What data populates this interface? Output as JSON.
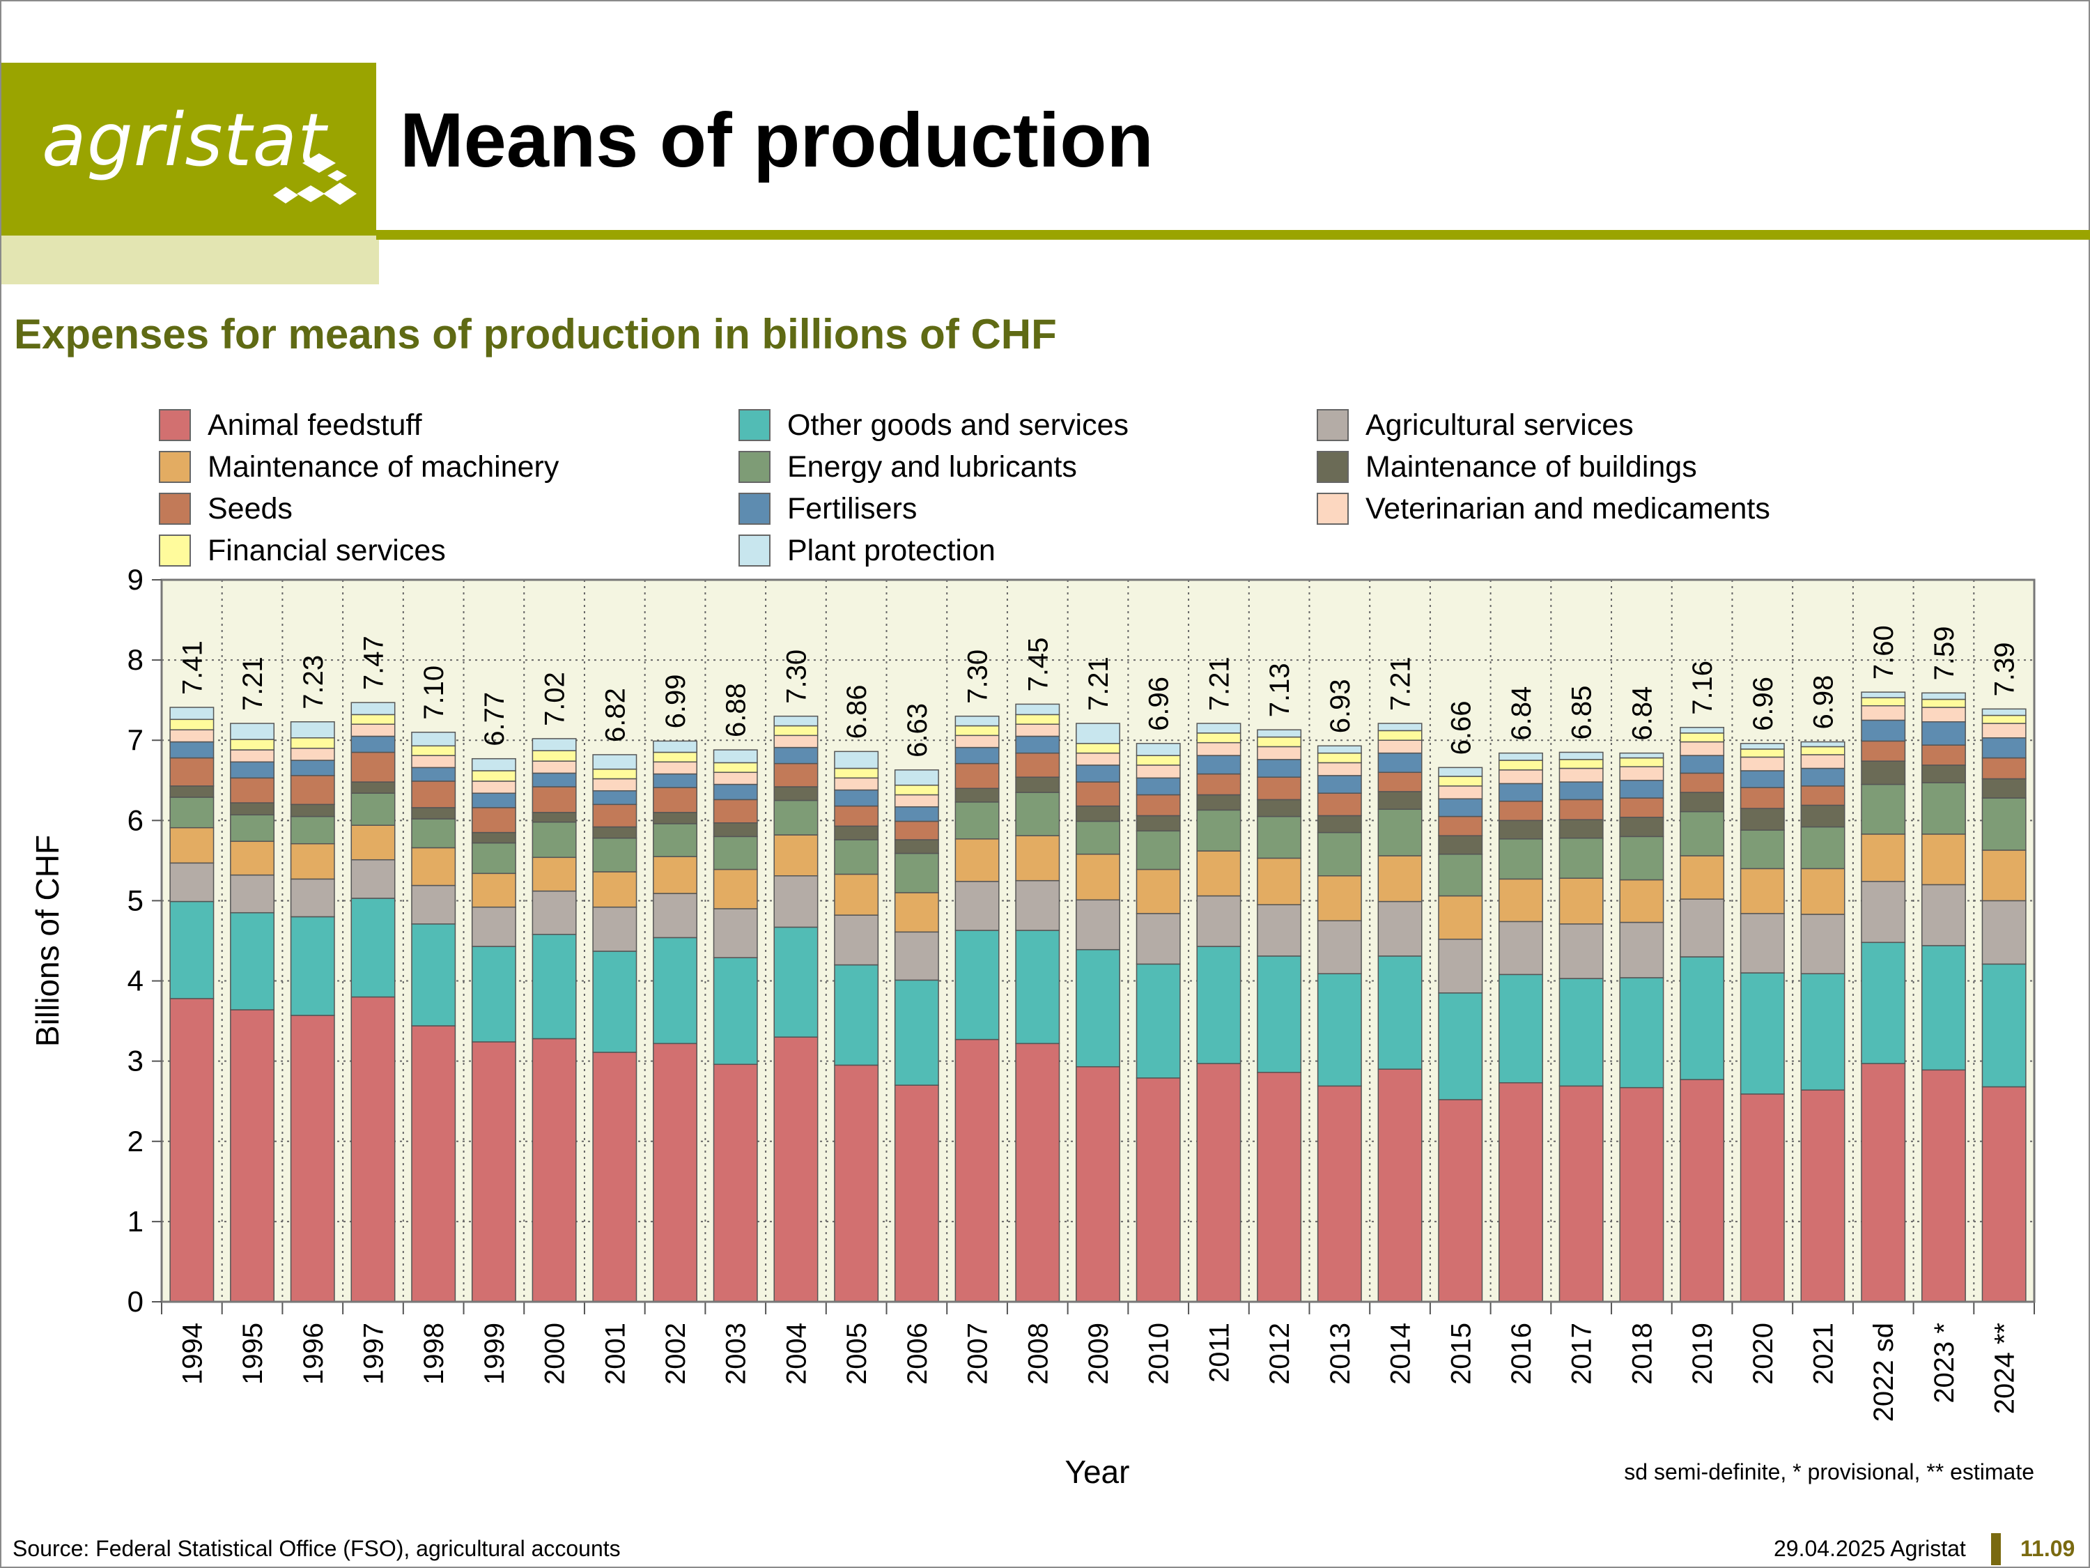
{
  "header": {
    "logo_text": "agristat",
    "title": "Means of production"
  },
  "subtitle": "Expenses for means of production in billions of CHF",
  "footer": {
    "source": "Source: Federal Statistical Office (FSO), agricultural accounts",
    "date": "29.04.2025 Agristat",
    "page": "11.09",
    "footnote": "sd semi-definite, * provisional, ** estimate"
  },
  "colors": {
    "brand": "#9aa400",
    "brand_light": "#e3e5b2",
    "plot_bg": "#f4f5e1",
    "subtitle": "#5f6a14"
  },
  "chart_data": {
    "type": "bar",
    "stacked": true,
    "xlabel": "Year",
    "ylabel": "Billions of CHF",
    "ylim": [
      0,
      9
    ],
    "yticks": [
      0,
      1,
      2,
      3,
      4,
      5,
      6,
      7,
      8,
      9
    ],
    "grid": true,
    "legend_position": "top",
    "categories": [
      "1994",
      "1995",
      "1996",
      "1997",
      "1998",
      "1999",
      "2000",
      "2001",
      "2002",
      "2003",
      "2004",
      "2005",
      "2006",
      "2007",
      "2008",
      "2009",
      "2010",
      "2011",
      "2012",
      "2013",
      "2014",
      "2015",
      "2016",
      "2017",
      "2018",
      "2019",
      "2020",
      "2021",
      "2022 sd",
      "2023 *",
      "2024 **"
    ],
    "totals": [
      7.41,
      7.21,
      7.23,
      7.47,
      7.1,
      6.77,
      7.02,
      6.82,
      6.99,
      6.88,
      7.3,
      6.86,
      6.63,
      7.3,
      7.45,
      7.21,
      6.96,
      7.21,
      7.13,
      6.93,
      7.21,
      6.66,
      6.84,
      6.85,
      6.84,
      7.16,
      6.96,
      6.98,
      7.6,
      7.59,
      7.39
    ],
    "total_labels": [
      "7.41",
      "7.21",
      "7.23",
      "7.47",
      "7.10",
      "6.77",
      "7.02",
      "6.82",
      "6.99",
      "6.88",
      "7.30",
      "6.86",
      "6.63",
      "7.30",
      "7.45",
      "7.21",
      "6.96",
      "7.21",
      "7.13",
      "6.93",
      "7.21",
      "6.66",
      "6.84",
      "6.85",
      "6.84",
      "7.16",
      "6.96",
      "6.98",
      "7.60",
      "7.59",
      "7.39"
    ],
    "series": [
      {
        "name": "Animal feedstuff",
        "color": "#d27070",
        "values": [
          3.78,
          3.64,
          3.57,
          3.8,
          3.44,
          3.24,
          3.28,
          3.11,
          3.22,
          2.96,
          3.3,
          2.95,
          2.7,
          3.27,
          3.22,
          2.93,
          2.79,
          2.97,
          2.86,
          2.69,
          2.9,
          2.52,
          2.73,
          2.69,
          2.67,
          2.77,
          2.59,
          2.64,
          2.97,
          2.89,
          2.68
        ]
      },
      {
        "name": "Other goods and services",
        "color": "#52bcb5",
        "values": [
          1.21,
          1.21,
          1.23,
          1.23,
          1.27,
          1.19,
          1.3,
          1.26,
          1.32,
          1.33,
          1.37,
          1.25,
          1.31,
          1.36,
          1.41,
          1.46,
          1.42,
          1.46,
          1.45,
          1.4,
          1.41,
          1.33,
          1.35,
          1.34,
          1.37,
          1.53,
          1.51,
          1.45,
          1.51,
          1.55,
          1.53
        ]
      },
      {
        "name": "Agricultural services",
        "color": "#b4aca6",
        "values": [
          0.48,
          0.47,
          0.47,
          0.48,
          0.48,
          0.49,
          0.54,
          0.55,
          0.55,
          0.61,
          0.64,
          0.62,
          0.6,
          0.61,
          0.62,
          0.62,
          0.63,
          0.63,
          0.64,
          0.66,
          0.68,
          0.67,
          0.66,
          0.68,
          0.69,
          0.72,
          0.74,
          0.74,
          0.76,
          0.76,
          0.79
        ]
      },
      {
        "name": "Maintenance of machinery",
        "color": "#e3ac62",
        "values": [
          0.44,
          0.42,
          0.44,
          0.43,
          0.47,
          0.42,
          0.42,
          0.44,
          0.46,
          0.49,
          0.51,
          0.51,
          0.49,
          0.53,
          0.56,
          0.57,
          0.55,
          0.56,
          0.58,
          0.56,
          0.57,
          0.54,
          0.53,
          0.57,
          0.53,
          0.54,
          0.56,
          0.57,
          0.59,
          0.63,
          0.63
        ]
      },
      {
        "name": "Energy and lubricants",
        "color": "#7e9c76",
        "values": [
          0.38,
          0.33,
          0.34,
          0.4,
          0.36,
          0.38,
          0.44,
          0.42,
          0.41,
          0.41,
          0.43,
          0.43,
          0.49,
          0.46,
          0.54,
          0.41,
          0.48,
          0.51,
          0.52,
          0.54,
          0.58,
          0.52,
          0.5,
          0.5,
          0.54,
          0.55,
          0.48,
          0.52,
          0.62,
          0.64,
          0.65
        ]
      },
      {
        "name": "Maintenance of buildings",
        "color": "#6b6b56",
        "values": [
          0.14,
          0.15,
          0.15,
          0.14,
          0.14,
          0.13,
          0.12,
          0.14,
          0.14,
          0.17,
          0.17,
          0.17,
          0.17,
          0.17,
          0.19,
          0.19,
          0.19,
          0.19,
          0.21,
          0.21,
          0.22,
          0.23,
          0.23,
          0.23,
          0.24,
          0.24,
          0.27,
          0.27,
          0.29,
          0.22,
          0.24
        ]
      },
      {
        "name": "Seeds",
        "color": "#c27a58",
        "values": [
          0.35,
          0.31,
          0.36,
          0.37,
          0.33,
          0.31,
          0.32,
          0.28,
          0.31,
          0.29,
          0.29,
          0.25,
          0.23,
          0.31,
          0.3,
          0.3,
          0.26,
          0.26,
          0.28,
          0.28,
          0.24,
          0.24,
          0.24,
          0.25,
          0.24,
          0.24,
          0.26,
          0.24,
          0.25,
          0.25,
          0.26
        ]
      },
      {
        "name": "Fertilisers",
        "color": "#5e8cb0",
        "values": [
          0.2,
          0.2,
          0.19,
          0.2,
          0.17,
          0.18,
          0.17,
          0.17,
          0.17,
          0.19,
          0.2,
          0.2,
          0.18,
          0.2,
          0.21,
          0.21,
          0.21,
          0.23,
          0.22,
          0.22,
          0.24,
          0.22,
          0.22,
          0.22,
          0.22,
          0.22,
          0.21,
          0.22,
          0.26,
          0.29,
          0.25
        ]
      },
      {
        "name": "Veterinarian and medicaments",
        "color": "#fcd7c0",
        "values": [
          0.15,
          0.15,
          0.15,
          0.15,
          0.15,
          0.15,
          0.15,
          0.15,
          0.15,
          0.15,
          0.15,
          0.15,
          0.15,
          0.15,
          0.15,
          0.15,
          0.16,
          0.16,
          0.16,
          0.16,
          0.16,
          0.16,
          0.17,
          0.17,
          0.17,
          0.17,
          0.17,
          0.17,
          0.18,
          0.18,
          0.18
        ]
      },
      {
        "name": "Financial services",
        "color": "#fffb9c",
        "values": [
          0.13,
          0.13,
          0.13,
          0.12,
          0.12,
          0.13,
          0.13,
          0.12,
          0.12,
          0.12,
          0.12,
          0.12,
          0.12,
          0.12,
          0.12,
          0.12,
          0.12,
          0.12,
          0.12,
          0.12,
          0.12,
          0.12,
          0.12,
          0.11,
          0.11,
          0.11,
          0.1,
          0.1,
          0.1,
          0.1,
          0.1
        ]
      },
      {
        "name": "Plant protection",
        "color": "#c8e6ee",
        "values": [
          0.15,
          0.2,
          0.2,
          0.15,
          0.17,
          0.15,
          0.15,
          0.18,
          0.14,
          0.16,
          0.12,
          0.21,
          0.19,
          0.12,
          0.13,
          0.25,
          0.15,
          0.12,
          0.09,
          0.09,
          0.09,
          0.11,
          0.09,
          0.09,
          0.06,
          0.07,
          0.07,
          0.06,
          0.07,
          0.08,
          0.08
        ]
      }
    ]
  }
}
